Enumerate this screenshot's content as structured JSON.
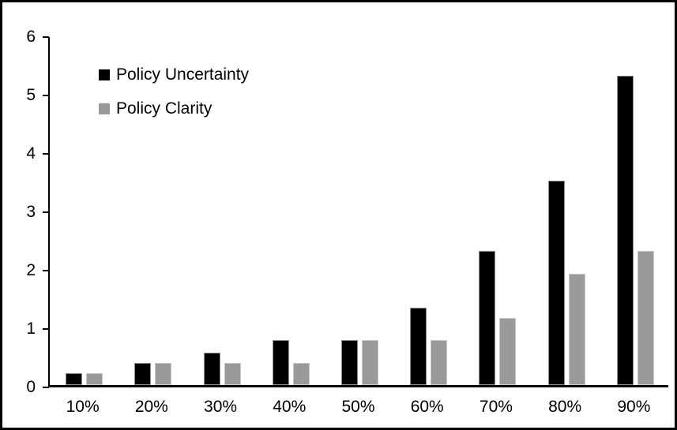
{
  "figure": {
    "background": "#ffffff",
    "border_color": "#000000",
    "axis_color": "#000000"
  },
  "legend": {
    "position": "top-left-inside",
    "items": [
      {
        "label": "Policy Uncertainty",
        "color": "#000000"
      },
      {
        "label": "Policy Clarity",
        "color": "#999999"
      }
    ]
  },
  "chart_data": {
    "type": "bar",
    "title": "",
    "xlabel": "",
    "ylabel": "",
    "categories": [
      "10%",
      "20%",
      "30%",
      "40%",
      "50%",
      "60%",
      "70%",
      "80%",
      "90%"
    ],
    "series": [
      {
        "name": "Policy Uncertainty",
        "color": "#000000",
        "border_color": "#8c8c8c",
        "values": [
          0.2,
          0.38,
          0.55,
          0.77,
          0.77,
          1.33,
          2.3,
          3.5,
          5.3
        ]
      },
      {
        "name": "Policy Clarity",
        "color": "#999999",
        "border_color": "#c8c8c8",
        "values": [
          0.2,
          0.38,
          0.38,
          0.38,
          0.77,
          0.77,
          1.15,
          1.9,
          2.3
        ]
      }
    ],
    "ylim": [
      0,
      6
    ],
    "yticks": [
      0,
      1,
      2,
      3,
      4,
      5,
      6
    ],
    "grid": false,
    "legend_position": "top-left-inside"
  }
}
